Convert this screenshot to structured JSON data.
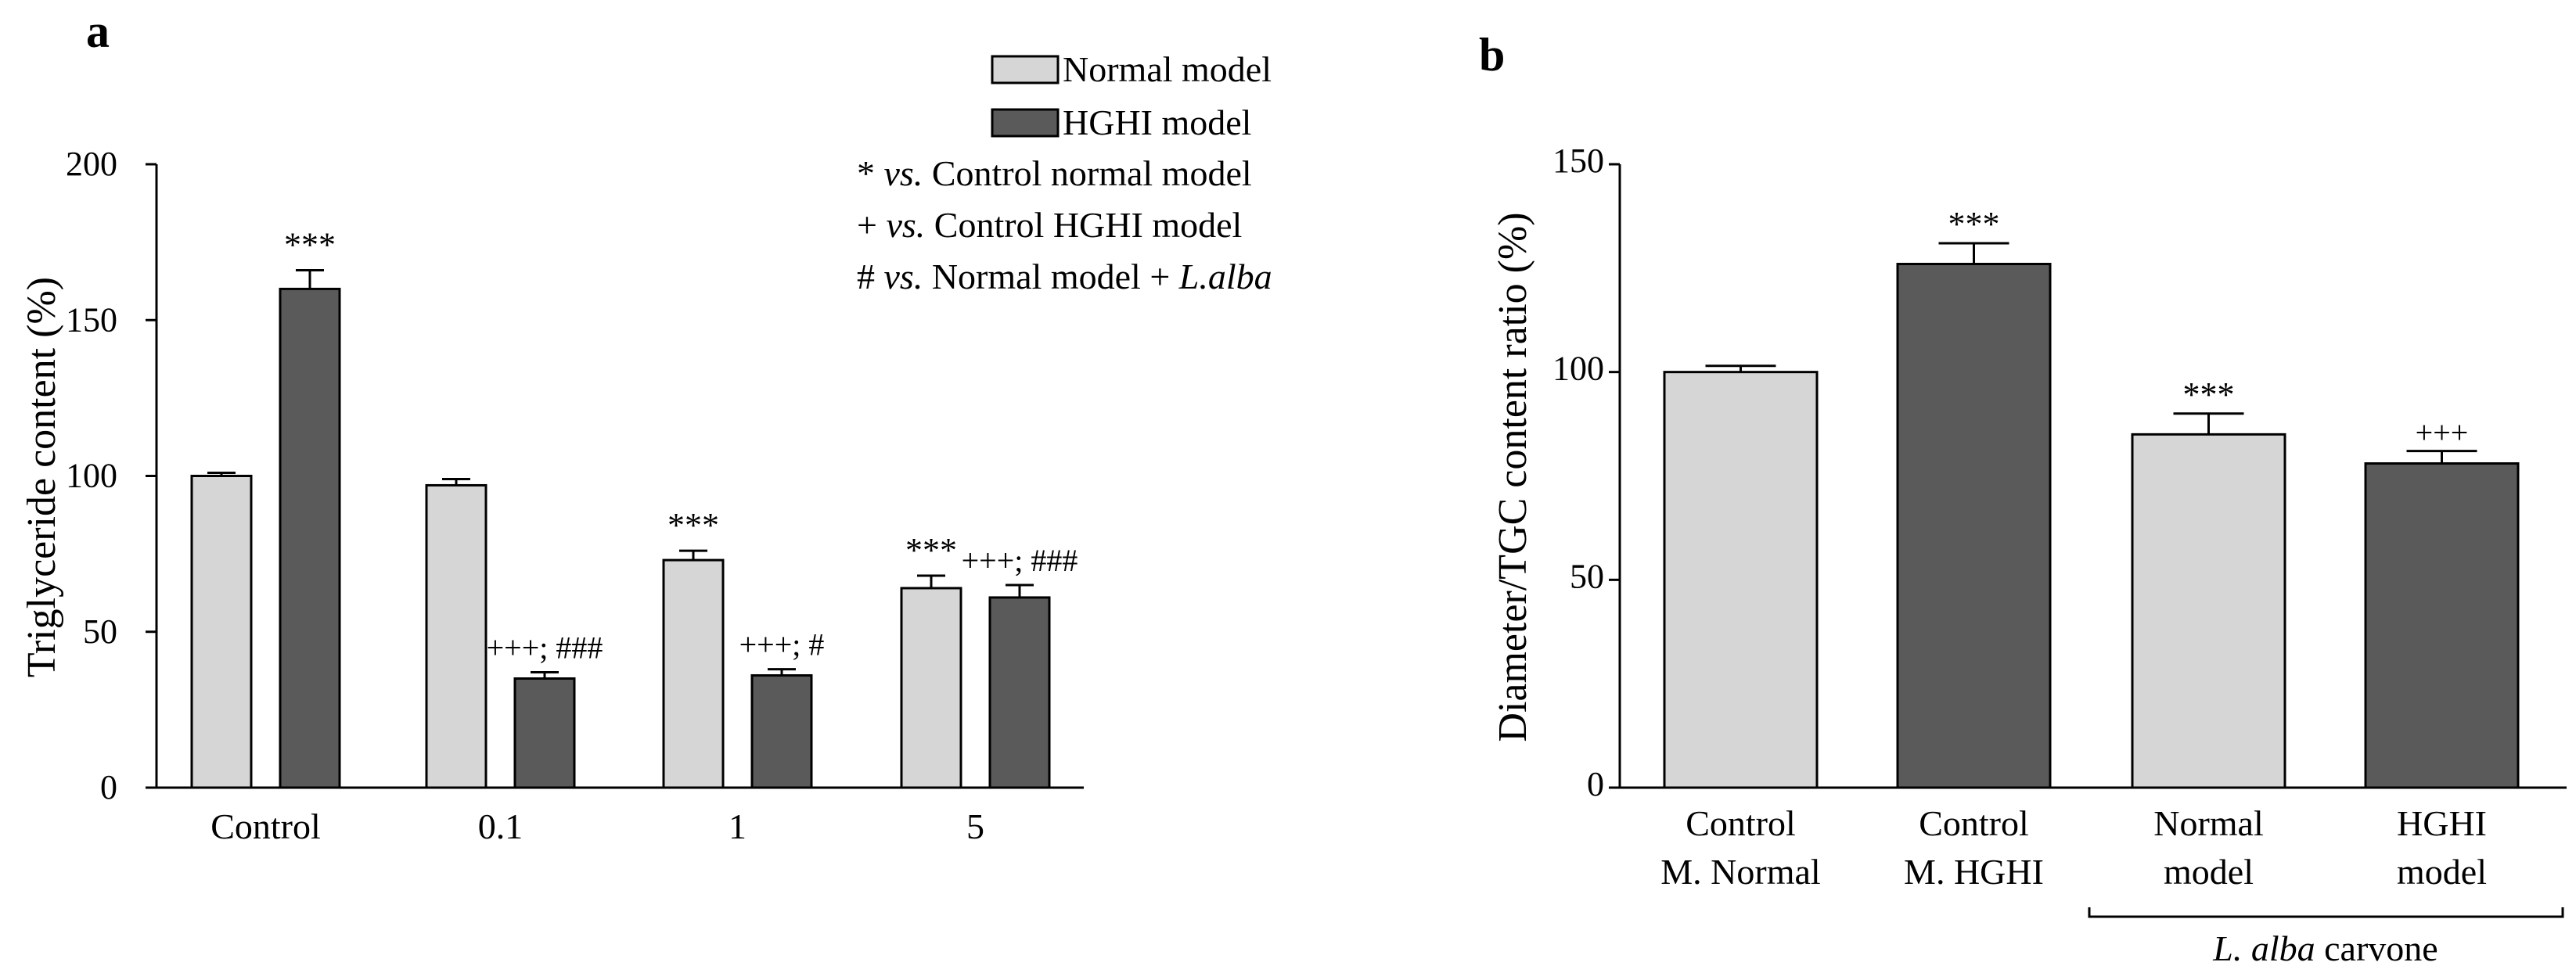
{
  "colors": {
    "normal": "#d6d6d6",
    "hghi": "#5a5a5a"
  },
  "chart_data": [
    {
      "panel": "a",
      "type": "bar",
      "ylabel": "Triglyceride content (%)",
      "ylim": [
        0,
        200
      ],
      "yticks": [
        0,
        50,
        100,
        150,
        200
      ],
      "categories": [
        "Control",
        "0.1",
        "1",
        "5"
      ],
      "series": [
        {
          "name": "Normal model",
          "values": [
            100,
            97,
            73,
            64
          ],
          "errors": [
            1,
            2,
            3,
            4
          ]
        },
        {
          "name": "HGHI model",
          "values": [
            160,
            35,
            36,
            61
          ],
          "errors": [
            6,
            2,
            2,
            4
          ]
        }
      ],
      "annotations": [
        [
          "",
          "***"
        ],
        [
          "",
          "+++; ###"
        ],
        [
          "***",
          "+++; #"
        ],
        [
          "***",
          "+++; ###"
        ]
      ],
      "legend": [
        "Normal model",
        "HGHI model"
      ],
      "notes": [
        {
          "symbol": "*",
          "vs": "vs.",
          "text": "Control normal model",
          "italic_tail": ""
        },
        {
          "symbol": "+",
          "vs": "vs.",
          "text": "Control HGHI model",
          "italic_tail": ""
        },
        {
          "symbol": "#",
          "vs": "vs.",
          "text": "Normal model + ",
          "italic_tail": "L.alba"
        }
      ]
    },
    {
      "panel": "b",
      "type": "bar",
      "ylabel": "Diameter/TGC content ratio (%)",
      "ylim": [
        0,
        150
      ],
      "yticks": [
        0,
        50,
        100,
        150
      ],
      "categories": [
        [
          "Control",
          "M. Normal"
        ],
        [
          "Control",
          "M. HGHI"
        ],
        [
          "Normal",
          "model"
        ],
        [
          "HGHI",
          "model"
        ]
      ],
      "values": [
        100,
        126,
        85,
        78
      ],
      "errors": [
        1.5,
        5,
        5,
        3
      ],
      "series_index": [
        0,
        1,
        0,
        1
      ],
      "annotations": [
        "",
        "***",
        "***",
        "+++"
      ],
      "group_label": {
        "italic": "L. alba",
        "rest": " carvone"
      }
    }
  ]
}
